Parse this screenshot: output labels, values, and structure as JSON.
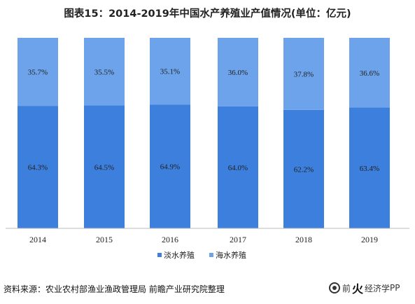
{
  "title": "图表15：2014-2019年中国水产养殖业产值情况(单位：亿元)",
  "source": "资料来源：农业农村部渔业渔政管理局 前瞻产业研究院整理",
  "logo": {
    "pre": "前",
    "mid": "经济学",
    "post": "PP",
    "brush": "火"
  },
  "colors": {
    "freshwater": "#3d7fdd",
    "marine": "#6ca3ea",
    "axis": "#bbbbbb",
    "text": "#222222"
  },
  "chart_data": {
    "type": "bar",
    "stacked": true,
    "percent": true,
    "categories": [
      "2014",
      "2015",
      "2016",
      "2017",
      "2018",
      "2019"
    ],
    "series": [
      {
        "name": "淡水养殖",
        "values": [
          64.3,
          64.5,
          64.9,
          64.0,
          62.2,
          63.4
        ],
        "labels": [
          "64.3%",
          "64.5%",
          "64.9%",
          "64.0%",
          "62.2%",
          "63.4%"
        ]
      },
      {
        "name": "海水养殖",
        "values": [
          35.7,
          35.5,
          35.1,
          36.0,
          37.8,
          36.6
        ],
        "labels": [
          "35.7%",
          "35.5%",
          "35.1%",
          "36.0%",
          "37.8%",
          "36.6%"
        ]
      }
    ],
    "ylim": [
      0,
      100
    ],
    "grid": false,
    "legend": "bottom"
  }
}
